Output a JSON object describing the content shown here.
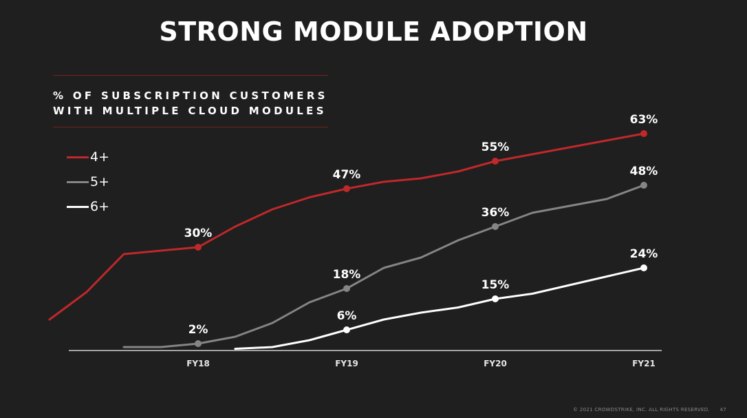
{
  "slide": {
    "title": "STRONG MODULE ADOPTION",
    "subtitle_line1": "% OF SUBSCRIPTION CUSTOMERS",
    "subtitle_line2": "WITH MULTIPLE CLOUD MODULES",
    "footer": "© 2021 CROWDSTRIKE, INC. ALL RIGHTS RESERVED.",
    "page_number": "47"
  },
  "chart_data": {
    "type": "line",
    "xlabel": "",
    "ylabel": "",
    "categories": [
      "FY18",
      "FY19",
      "FY20",
      "FY21"
    ],
    "ylim": [
      0,
      63
    ],
    "grid": false,
    "legend_position": "top-left",
    "series": [
      {
        "name": "4+",
        "color": "#c0282a",
        "points": [
          [
            -1.0,
            9
          ],
          [
            -0.75,
            17
          ],
          [
            -0.5,
            28
          ],
          [
            0,
            30
          ],
          [
            0.25,
            36
          ],
          [
            0.5,
            41
          ],
          [
            0.75,
            44.5
          ],
          [
            1,
            47
          ],
          [
            1.25,
            49
          ],
          [
            1.5,
            50
          ],
          [
            1.75,
            52
          ],
          [
            2,
            55
          ],
          [
            2.25,
            57
          ],
          [
            2.5,
            59
          ],
          [
            2.75,
            61
          ],
          [
            3,
            63
          ]
        ],
        "labeled": [
          [
            0,
            30,
            "30%"
          ],
          [
            1,
            47,
            "47%"
          ],
          [
            2,
            55,
            "55%"
          ],
          [
            3,
            63,
            "63%"
          ]
        ]
      },
      {
        "name": "5+",
        "color": "#858585",
        "points": [
          [
            -0.5,
            1
          ],
          [
            -0.25,
            1
          ],
          [
            0,
            2
          ],
          [
            0.25,
            4
          ],
          [
            0.5,
            8
          ],
          [
            0.75,
            14
          ],
          [
            1,
            18
          ],
          [
            1.25,
            24
          ],
          [
            1.5,
            27
          ],
          [
            1.75,
            32
          ],
          [
            2,
            36
          ],
          [
            2.25,
            40
          ],
          [
            2.5,
            42
          ],
          [
            2.75,
            44
          ],
          [
            3,
            48
          ]
        ],
        "labeled": [
          [
            0,
            2,
            "2%"
          ],
          [
            1,
            18,
            "18%"
          ],
          [
            2,
            36,
            "36%"
          ],
          [
            3,
            48,
            "48%"
          ]
        ]
      },
      {
        "name": "6+",
        "color": "#ffffff",
        "points": [
          [
            0.25,
            0.5
          ],
          [
            0.5,
            1
          ],
          [
            0.75,
            3
          ],
          [
            1,
            6
          ],
          [
            1.25,
            9
          ],
          [
            1.5,
            11
          ],
          [
            1.75,
            12.5
          ],
          [
            2,
            15
          ],
          [
            2.25,
            16.5
          ],
          [
            2.5,
            19
          ],
          [
            2.75,
            21.5
          ],
          [
            3,
            24
          ]
        ],
        "labeled": [
          [
            1,
            6,
            "6%"
          ],
          [
            2,
            15,
            "15%"
          ],
          [
            3,
            24,
            "24%"
          ]
        ]
      }
    ]
  }
}
